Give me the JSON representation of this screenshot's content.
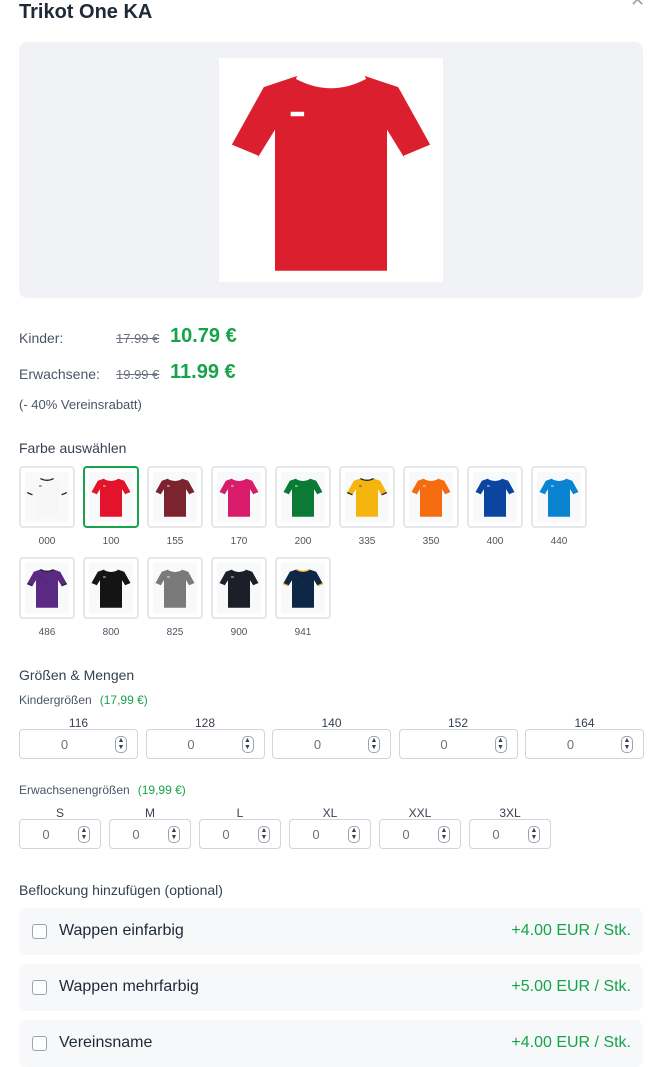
{
  "title": "Trikot One KA",
  "close_icon": "close-icon",
  "product_color": "#dc1f2e",
  "prices": {
    "kinder": {
      "label": "Kinder:",
      "old": "17.99 €",
      "new": "10.79 €"
    },
    "erwachsene": {
      "label": "Erwachsene:",
      "old": "19.99 €",
      "new": "11.99 €"
    },
    "discount": "(- 40% Vereinsrabatt)"
  },
  "colors": {
    "heading": "Farbe auswählen",
    "selected": "100",
    "items": [
      {
        "code": "000",
        "hex": "#f7f7f7",
        "trim": "#222"
      },
      {
        "code": "100",
        "hex": "#e3132b",
        "trim": "#fff"
      },
      {
        "code": "155",
        "hex": "#7c2330",
        "trim": "#fff"
      },
      {
        "code": "170",
        "hex": "#d81b6a",
        "trim": "#fff"
      },
      {
        "code": "200",
        "hex": "#0b7a35",
        "trim": "#fff"
      },
      {
        "code": "335",
        "hex": "#f5b50e",
        "trim": "#222"
      },
      {
        "code": "350",
        "hex": "#f56b0f",
        "trim": "#fff"
      },
      {
        "code": "400",
        "hex": "#0b45a0",
        "trim": "#fff"
      },
      {
        "code": "440",
        "hex": "#0a83d1",
        "trim": "#fff"
      },
      {
        "code": "486",
        "hex": "#5a2a82",
        "trim": "#222"
      },
      {
        "code": "800",
        "hex": "#141414",
        "trim": "#fff"
      },
      {
        "code": "825",
        "hex": "#7a7a7a",
        "trim": "#fff"
      },
      {
        "code": "900",
        "hex": "#1c1e28",
        "trim": "#fff"
      },
      {
        "code": "941",
        "hex": "#0f2747",
        "trim": "#f5b50e"
      }
    ]
  },
  "sizes": {
    "heading": "Größen & Mengen",
    "kinder": {
      "label": "Kindergrößen",
      "price": "(17,99 €)",
      "items": [
        {
          "size": "116",
          "qty": "0"
        },
        {
          "size": "128",
          "qty": "0"
        },
        {
          "size": "140",
          "qty": "0"
        },
        {
          "size": "152",
          "qty": "0"
        },
        {
          "size": "164",
          "qty": "0"
        }
      ]
    },
    "erwachsene": {
      "label": "Erwachsenengrößen",
      "price": "(19,99 €)",
      "items": [
        {
          "size": "S",
          "qty": "0"
        },
        {
          "size": "M",
          "qty": "0"
        },
        {
          "size": "L",
          "qty": "0"
        },
        {
          "size": "XL",
          "qty": "0"
        },
        {
          "size": "XXL",
          "qty": "0"
        },
        {
          "size": "3XL",
          "qty": "0"
        }
      ]
    }
  },
  "flocking": {
    "heading": "Beflockung hinzufügen (optional)",
    "options": [
      {
        "label": "Wappen einfarbig",
        "price": "+4.00 EUR / Stk.",
        "checked": false
      },
      {
        "label": "Wappen mehrfarbig",
        "price": "+5.00 EUR / Stk.",
        "checked": false
      },
      {
        "label": "Vereinsname",
        "price": "+4.00 EUR / Stk.",
        "checked": false
      }
    ]
  }
}
